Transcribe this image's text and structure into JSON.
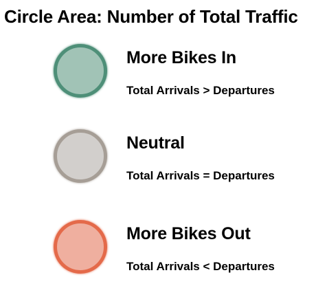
{
  "title": "Circle Area: Number of Total Traffic",
  "legend": {
    "items": [
      {
        "heading": "More Bikes In",
        "description": "Total Arrivals > Departures",
        "fill": "#a1c3b6",
        "border": "#4e8f78"
      },
      {
        "heading": "Neutral",
        "description": "Total Arrivals = Departures",
        "fill": "#d2cfcc",
        "border": "#a69e96"
      },
      {
        "heading": "More Bikes Out",
        "description": "Total Arrivals < Departures",
        "fill": "#efaf9f",
        "border": "#e46a4a"
      }
    ]
  }
}
